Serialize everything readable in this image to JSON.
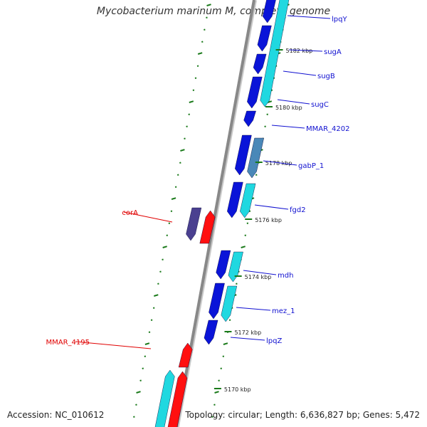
{
  "title": "Mycobacterium marinum M, complete genome",
  "footer": {
    "accession": "Accession: NC_010612",
    "topology": "Topology: circular; Length: 6,636,827 bp; Genes: 5,472"
  },
  "colors": {
    "backbone": "#888888",
    "tick": "#1a7a1a",
    "forward_gene": "#0a14d8",
    "reverse_gene": "#20d8e0",
    "gabp_gene": "#4a88b8",
    "highlight_gene": "#ff1010",
    "cora_gene": "#4a4090",
    "blue_label": "#1010d0",
    "red_label": "#e00000"
  },
  "scale_labels": [
    "5182 kbp",
    "5180 kbp",
    "5178 kbp",
    "5176 kbp",
    "5174 kbp",
    "5172 kbp",
    "5170 kbp"
  ],
  "gene_labels": [
    {
      "text": "lpqY",
      "color": "blue"
    },
    {
      "text": "sugA",
      "color": "blue"
    },
    {
      "text": "sugB",
      "color": "blue"
    },
    {
      "text": "sugC",
      "color": "blue"
    },
    {
      "text": "MMAR_4202",
      "color": "blue"
    },
    {
      "text": "gabP_1",
      "color": "blue"
    },
    {
      "text": "fgd2",
      "color": "blue"
    },
    {
      "text": "corA",
      "color": "red"
    },
    {
      "text": "mdh",
      "color": "blue"
    },
    {
      "text": "mez_1",
      "color": "blue"
    },
    {
      "text": "lpqZ",
      "color": "blue"
    },
    {
      "text": "MMAR_4195",
      "color": "red"
    }
  ]
}
